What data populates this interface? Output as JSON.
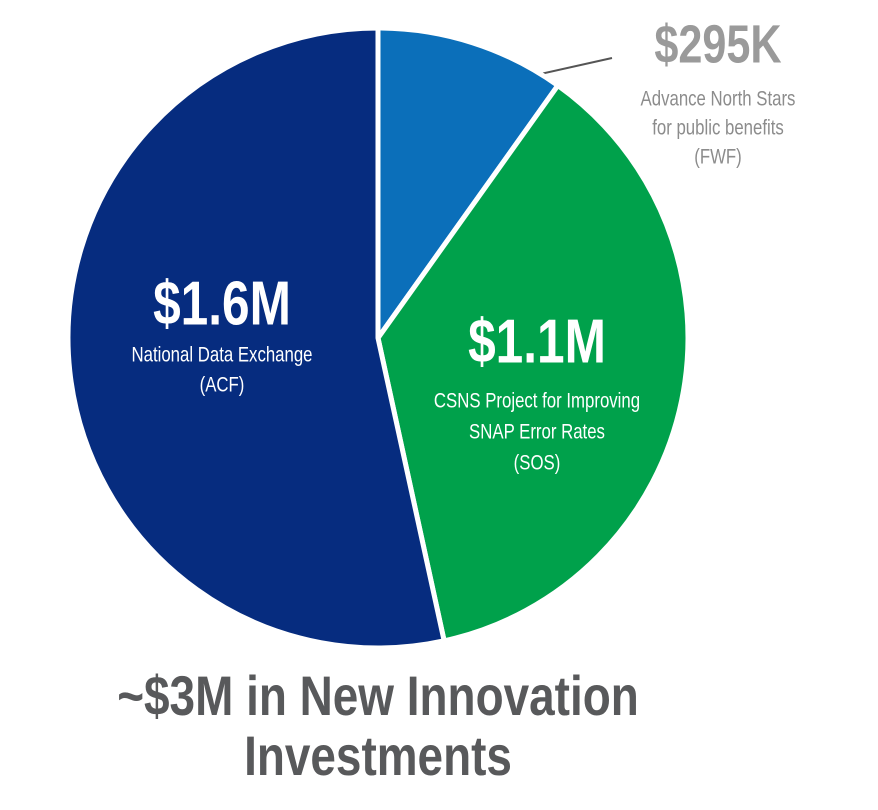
{
  "chart_data": {
    "type": "pie",
    "title": [
      "~$3M in New Innovation",
      "Investments"
    ],
    "values": [
      295000,
      1100000,
      1600000
    ],
    "value_labels": [
      "$295K",
      "$1.1M",
      "$1.6M"
    ],
    "labels": [
      [
        "Advance North Stars",
        "for public benefits",
        "(FWF)"
      ],
      [
        "CSNS Project for Improving",
        "SNAP Error Rates",
        "(SOS)"
      ],
      [
        "National Data Exchange",
        "(ACF)"
      ]
    ],
    "colors": [
      "#0b6fba",
      "#00a14b",
      "#062c7f"
    ]
  }
}
